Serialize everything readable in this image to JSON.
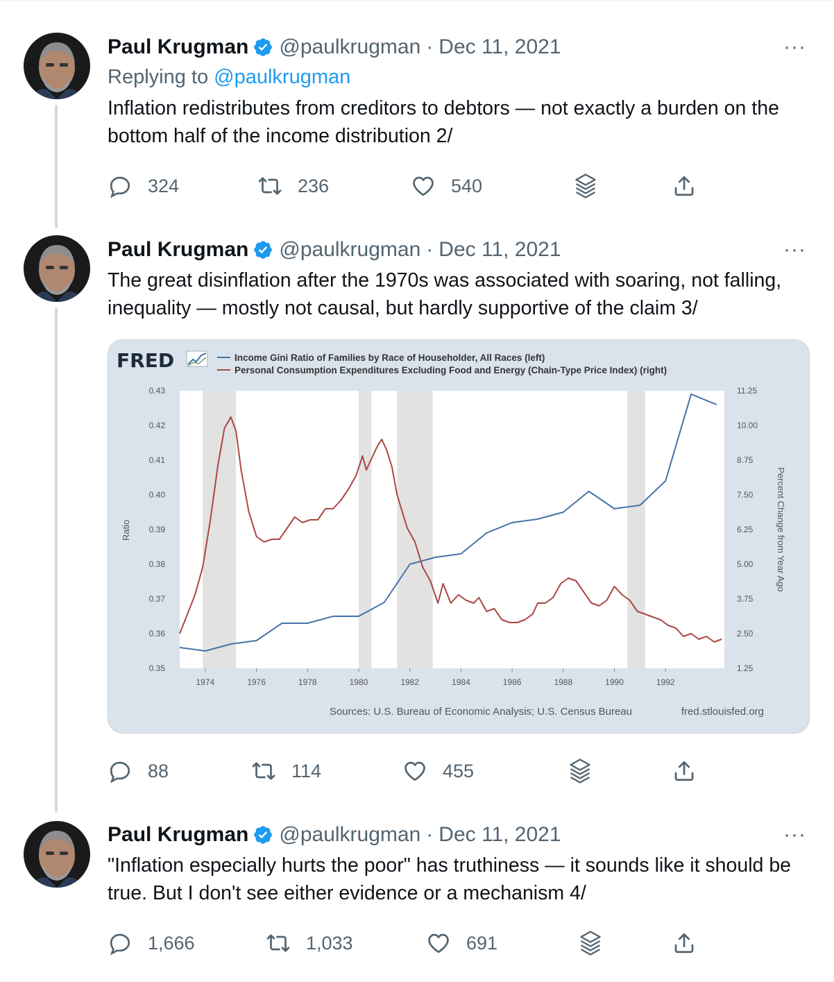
{
  "tweets": [
    {
      "name": "Paul Krugman",
      "handle": "@paulkrugman",
      "separator": "·",
      "date": "Dec 11, 2021",
      "replying_label": "Replying to",
      "replying_handle": "@paulkrugman",
      "text": "Inflation redistributes from creditors to debtors  — not exactly a burden on the bottom half of the income distribution 2/",
      "replies": "324",
      "retweets": "236",
      "likes": "540"
    },
    {
      "name": "Paul Krugman",
      "handle": "@paulkrugman",
      "separator": "·",
      "date": "Dec 11, 2021",
      "text": "The great disinflation after the 1970s was associated with soaring, not falling, inequality — mostly not causal, but hardly supportive of the claim 3/",
      "replies": "88",
      "retweets": "114",
      "likes": "455"
    },
    {
      "name": "Paul Krugman",
      "handle": "@paulkrugman",
      "separator": "·",
      "date": "Dec 11, 2021",
      "text": "\"Inflation especially hurts the poor\" has truthiness — it sounds like it should be true. But I don't see either evidence or a mechanism 4/",
      "replies": "1,666",
      "retweets": "1,033",
      "likes": "691"
    }
  ],
  "more_label": "···",
  "colors": {
    "accent": "#1d9bf0",
    "muted": "#536471",
    "gini": "#4572a7",
    "pce": "#aa4643"
  },
  "chart_data": {
    "type": "line",
    "logo": "FRED",
    "series": [
      {
        "name": "Income Gini Ratio of Families by Race of Householder, All Races (left)",
        "axis": "left",
        "x": [
          1973,
          1974,
          1975,
          1976,
          1977,
          1978,
          1979,
          1980,
          1981,
          1982,
          1983,
          1984,
          1985,
          1986,
          1987,
          1988,
          1989,
          1990,
          1991,
          1992,
          1993,
          1994
        ],
        "y": [
          0.356,
          0.355,
          0.357,
          0.358,
          0.363,
          0.363,
          0.365,
          0.365,
          0.369,
          0.38,
          0.382,
          0.383,
          0.389,
          0.392,
          0.393,
          0.395,
          0.401,
          0.396,
          0.397,
          0.404,
          0.429,
          0.426
        ]
      },
      {
        "name": "Personal Consumption Expenditures Excluding Food and Energy (Chain-Type Price Index) (right)",
        "axis": "right",
        "x": [
          1973.0,
          1973.3,
          1973.6,
          1973.9,
          1974.2,
          1974.5,
          1974.75,
          1975.0,
          1975.2,
          1975.4,
          1975.7,
          1976.0,
          1976.3,
          1976.6,
          1976.9,
          1977.2,
          1977.5,
          1977.8,
          1978.1,
          1978.4,
          1978.7,
          1979.0,
          1979.3,
          1979.6,
          1979.9,
          1980.15,
          1980.3,
          1980.5,
          1980.7,
          1980.9,
          1981.1,
          1981.3,
          1981.5,
          1981.7,
          1981.9,
          1982.2,
          1982.5,
          1982.8,
          1983.1,
          1983.3,
          1983.6,
          1983.9,
          1984.2,
          1984.5,
          1984.7,
          1985.0,
          1985.3,
          1985.6,
          1985.9,
          1986.2,
          1986.5,
          1986.8,
          1987.0,
          1987.3,
          1987.6,
          1987.9,
          1988.2,
          1988.5,
          1988.8,
          1989.1,
          1989.4,
          1989.7,
          1990.0,
          1990.3,
          1990.6,
          1990.9,
          1991.2,
          1991.5,
          1991.8,
          1992.1,
          1992.4,
          1992.7,
          1993.0,
          1993.3,
          1993.6,
          1993.9,
          1994.2
        ],
        "y": [
          2.5,
          3.2,
          3.9,
          4.9,
          6.6,
          8.6,
          9.9,
          10.3,
          9.8,
          8.4,
          6.9,
          6.0,
          5.8,
          5.9,
          5.9,
          6.3,
          6.7,
          6.5,
          6.6,
          6.6,
          7.0,
          7.0,
          7.3,
          7.7,
          8.2,
          8.9,
          8.4,
          8.8,
          9.2,
          9.5,
          9.1,
          8.5,
          7.5,
          6.9,
          6.3,
          5.8,
          4.9,
          4.4,
          3.6,
          4.3,
          3.6,
          3.9,
          3.7,
          3.6,
          3.8,
          3.3,
          3.4,
          3.0,
          2.9,
          2.9,
          3.0,
          3.2,
          3.6,
          3.6,
          3.8,
          4.3,
          4.5,
          4.4,
          4.0,
          3.6,
          3.5,
          3.7,
          4.2,
          3.9,
          3.7,
          3.3,
          3.2,
          3.1,
          3.0,
          2.8,
          2.7,
          2.4,
          2.5,
          2.3,
          2.4,
          2.2,
          2.3
        ]
      }
    ],
    "left_axis": {
      "label": "Ratio",
      "ticks": [
        "0.43",
        "0.42",
        "0.41",
        "0.40",
        "0.39",
        "0.38",
        "0.37",
        "0.36",
        "0.35"
      ],
      "range": [
        0.35,
        0.43
      ]
    },
    "right_axis": {
      "label": "Percent Change from Year Ago",
      "ticks": [
        "11.25",
        "10.00",
        "8.75",
        "7.50",
        "6.25",
        "5.00",
        "3.75",
        "2.50",
        "1.25"
      ],
      "range": [
        1.25,
        11.25
      ]
    },
    "x_axis": {
      "ticks": [
        "1974",
        "1976",
        "1978",
        "1980",
        "1982",
        "1984",
        "1986",
        "1988",
        "1990",
        "1992"
      ],
      "range": [
        1973,
        1994.3
      ]
    },
    "recessions": [
      [
        1973.9,
        1975.2
      ],
      [
        1980.0,
        1980.5
      ],
      [
        1981.5,
        1982.9
      ],
      [
        1990.5,
        1991.2
      ]
    ],
    "source": "Sources: U.S. Bureau of Economic Analysis; U.S. Census Bureau",
    "site": "fred.stlouisfed.org"
  }
}
